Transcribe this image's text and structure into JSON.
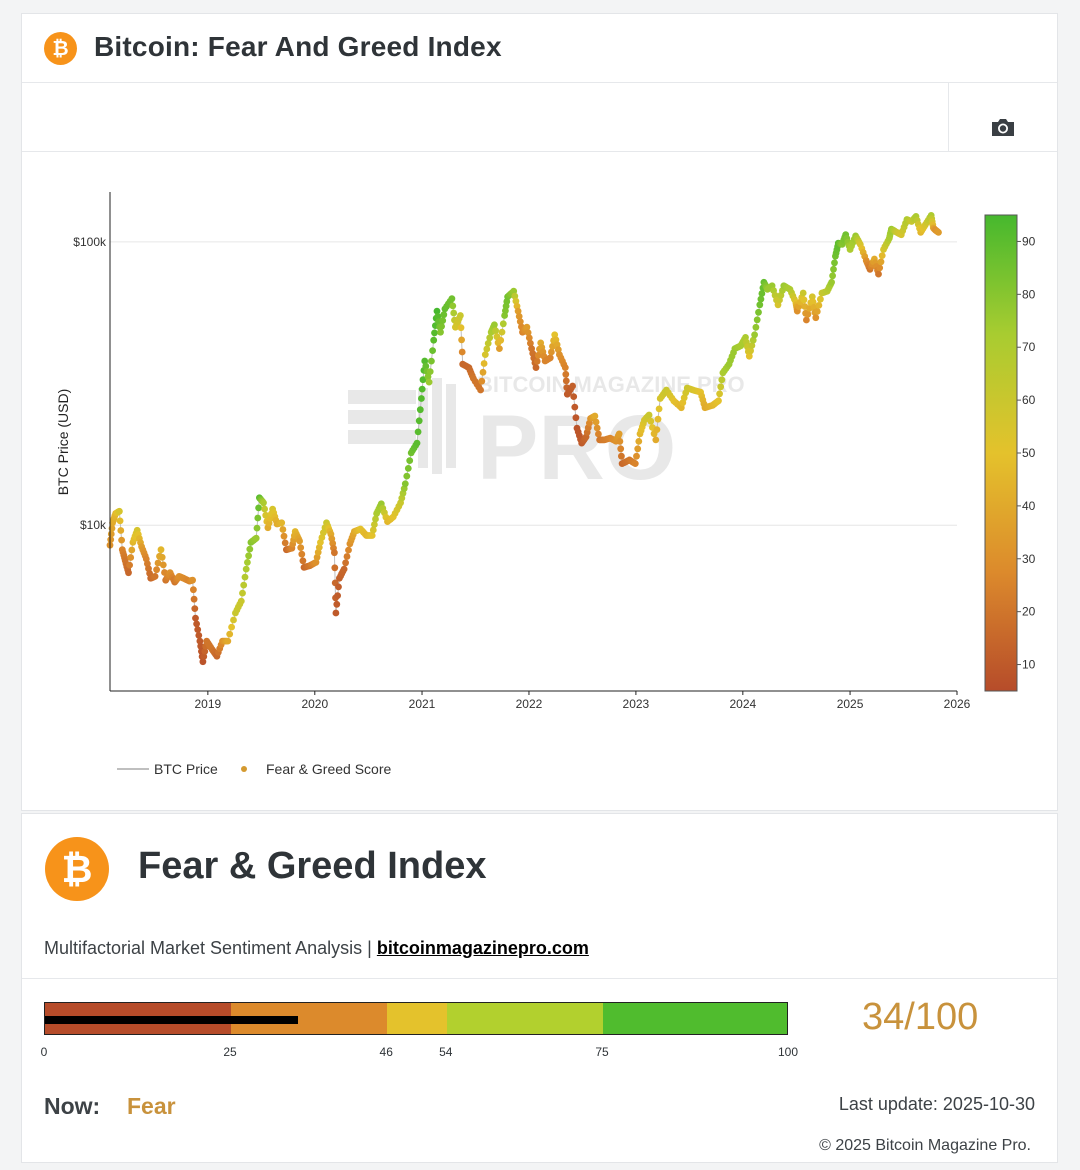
{
  "header": {
    "title": "Bitcoin: Fear And Greed Index",
    "logo_glyph": "₿"
  },
  "toolbar": {
    "camera_icon": "camera-icon"
  },
  "chart_data": {
    "type": "scatter",
    "ylabel": "BTC Price (USD)",
    "xlabel": "",
    "y_scale": "log",
    "ylim": [
      2600,
      150000
    ],
    "y_ticks": [
      {
        "value": 10000,
        "label": "$10k"
      },
      {
        "value": 100000,
        "label": "$100k"
      }
    ],
    "xlim": [
      "2018-02-01",
      "2026-01-01"
    ],
    "x_ticks": [
      "2019",
      "2020",
      "2021",
      "2022",
      "2023",
      "2024",
      "2025",
      "2026"
    ],
    "colorbar": {
      "min": 5,
      "max": 95,
      "ticks": [
        10,
        20,
        30,
        40,
        50,
        60,
        70,
        80,
        90
      ]
    },
    "legend": {
      "position": "bottom-left",
      "items": [
        "BTC Price",
        "Fear & Greed Score"
      ]
    },
    "watermark": "BITCOIN MAGAZINE PRO",
    "series": [
      {
        "name": "BTC Price",
        "style": "line",
        "color": "#bfbfbf"
      },
      {
        "name": "Fear & Greed Score",
        "style": "points",
        "points": [
          [
            "2018-02-01",
            8500,
            30
          ],
          [
            "2018-02-10",
            10200,
            40
          ],
          [
            "2018-02-20",
            11000,
            45
          ],
          [
            "2018-03-05",
            11200,
            55
          ],
          [
            "2018-03-15",
            8200,
            25
          ],
          [
            "2018-03-25",
            7500,
            20
          ],
          [
            "2018-04-05",
            6800,
            15
          ],
          [
            "2018-04-20",
            8700,
            45
          ],
          [
            "2018-05-05",
            9600,
            55
          ],
          [
            "2018-05-20",
            8400,
            35
          ],
          [
            "2018-06-05",
            7600,
            25
          ],
          [
            "2018-06-20",
            6500,
            15
          ],
          [
            "2018-07-05",
            6600,
            20
          ],
          [
            "2018-07-25",
            8200,
            45
          ],
          [
            "2018-08-10",
            6400,
            20
          ],
          [
            "2018-08-25",
            6800,
            30
          ],
          [
            "2018-09-10",
            6300,
            20
          ],
          [
            "2018-09-25",
            6600,
            30
          ],
          [
            "2018-10-10",
            6500,
            28
          ],
          [
            "2018-10-30",
            6350,
            25
          ],
          [
            "2018-11-10",
            6400,
            30
          ],
          [
            "2018-11-20",
            4700,
            10
          ],
          [
            "2018-12-05",
            3900,
            10
          ],
          [
            "2018-12-15",
            3300,
            8
          ],
          [
            "2018-12-28",
            3900,
            20
          ],
          [
            "2019-01-15",
            3650,
            20
          ],
          [
            "2019-02-01",
            3450,
            15
          ],
          [
            "2019-02-20",
            3900,
            30
          ],
          [
            "2019-03-10",
            3900,
            40
          ],
          [
            "2019-04-05",
            4900,
            60
          ],
          [
            "2019-04-25",
            5400,
            60
          ],
          [
            "2019-05-12",
            7000,
            70
          ],
          [
            "2019-05-28",
            8700,
            80
          ],
          [
            "2019-06-15",
            9000,
            75
          ],
          [
            "2019-06-26",
            12500,
            90
          ],
          [
            "2019-07-10",
            12000,
            70
          ],
          [
            "2019-07-25",
            9800,
            40
          ],
          [
            "2019-08-10",
            11400,
            55
          ],
          [
            "2019-08-25",
            10100,
            40
          ],
          [
            "2019-09-10",
            10200,
            45
          ],
          [
            "2019-09-26",
            8200,
            15
          ],
          [
            "2019-10-15",
            8300,
            25
          ],
          [
            "2019-10-26",
            9500,
            45
          ],
          [
            "2019-11-10",
            8800,
            35
          ],
          [
            "2019-11-25",
            7100,
            15
          ],
          [
            "2019-12-15",
            7200,
            20
          ],
          [
            "2020-01-05",
            7400,
            30
          ],
          [
            "2020-01-20",
            8700,
            50
          ],
          [
            "2020-02-10",
            10200,
            60
          ],
          [
            "2020-02-25",
            9300,
            40
          ],
          [
            "2020-03-08",
            8000,
            20
          ],
          [
            "2020-03-13",
            4900,
            10
          ],
          [
            "2020-03-25",
            6500,
            12
          ],
          [
            "2020-04-10",
            7000,
            15
          ],
          [
            "2020-04-30",
            8600,
            30
          ],
          [
            "2020-05-15",
            9500,
            40
          ],
          [
            "2020-06-05",
            9700,
            50
          ],
          [
            "2020-06-25",
            9200,
            45
          ],
          [
            "2020-07-15",
            9200,
            50
          ],
          [
            "2020-07-30",
            11000,
            70
          ],
          [
            "2020-08-15",
            11900,
            75
          ],
          [
            "2020-09-05",
            10300,
            45
          ],
          [
            "2020-09-25",
            10700,
            50
          ],
          [
            "2020-10-20",
            12000,
            60
          ],
          [
            "2020-11-05",
            14000,
            80
          ],
          [
            "2020-11-25",
            18000,
            85
          ],
          [
            "2020-12-15",
            19500,
            90
          ],
          [
            "2020-12-30",
            28000,
            92
          ],
          [
            "2021-01-10",
            38000,
            92
          ],
          [
            "2021-01-25",
            32000,
            75
          ],
          [
            "2021-02-10",
            45000,
            90
          ],
          [
            "2021-02-21",
            57000,
            95
          ],
          [
            "2021-03-05",
            48000,
            80
          ],
          [
            "2021-03-20",
            58000,
            88
          ],
          [
            "2021-04-13",
            63000,
            85
          ],
          [
            "2021-04-25",
            50000,
            55
          ],
          [
            "2021-05-12",
            55000,
            60
          ],
          [
            "2021-05-20",
            37000,
            15
          ],
          [
            "2021-06-10",
            36000,
            15
          ],
          [
            "2021-06-25",
            33000,
            20
          ],
          [
            "2021-07-20",
            30000,
            20
          ],
          [
            "2021-08-05",
            40000,
            55
          ],
          [
            "2021-08-25",
            48000,
            70
          ],
          [
            "2021-09-05",
            51000,
            75
          ],
          [
            "2021-09-22",
            42000,
            35
          ],
          [
            "2021-10-10",
            55000,
            80
          ],
          [
            "2021-10-20",
            64000,
            85
          ],
          [
            "2021-11-10",
            67000,
            75
          ],
          [
            "2021-11-25",
            57000,
            35
          ],
          [
            "2021-12-10",
            48000,
            25
          ],
          [
            "2021-12-25",
            50000,
            35
          ],
          [
            "2022-01-10",
            42000,
            20
          ],
          [
            "2022-01-25",
            36000,
            15
          ],
          [
            "2022-02-10",
            44000,
            40
          ],
          [
            "2022-02-25",
            38000,
            25
          ],
          [
            "2022-03-15",
            39000,
            25
          ],
          [
            "2022-03-30",
            47000,
            50
          ],
          [
            "2022-04-15",
            40000,
            30
          ],
          [
            "2022-05-05",
            36000,
            25
          ],
          [
            "2022-05-12",
            29000,
            10
          ],
          [
            "2022-05-30",
            31000,
            12
          ],
          [
            "2022-06-14",
            22000,
            8
          ],
          [
            "2022-06-30",
            19500,
            10
          ],
          [
            "2022-07-15",
            20500,
            15
          ],
          [
            "2022-07-30",
            23800,
            30
          ],
          [
            "2022-08-14",
            24300,
            40
          ],
          [
            "2022-08-30",
            20000,
            20
          ],
          [
            "2022-09-15",
            20000,
            22
          ],
          [
            "2022-10-05",
            20300,
            25
          ],
          [
            "2022-10-25",
            19800,
            30
          ],
          [
            "2022-11-05",
            21000,
            35
          ],
          [
            "2022-11-15",
            16500,
            15
          ],
          [
            "2022-12-10",
            17000,
            20
          ],
          [
            "2022-12-30",
            16500,
            25
          ],
          [
            "2023-01-15",
            21000,
            45
          ],
          [
            "2023-01-30",
            23500,
            55
          ],
          [
            "2023-02-15",
            24500,
            60
          ],
          [
            "2023-03-10",
            20000,
            40
          ],
          [
            "2023-03-25",
            28000,
            55
          ],
          [
            "2023-04-15",
            30000,
            60
          ],
          [
            "2023-05-10",
            27500,
            50
          ],
          [
            "2023-06-05",
            26000,
            45
          ],
          [
            "2023-06-25",
            30500,
            60
          ],
          [
            "2023-07-15",
            30000,
            55
          ],
          [
            "2023-08-10",
            29500,
            50
          ],
          [
            "2023-08-25",
            26000,
            40
          ],
          [
            "2023-09-20",
            26500,
            45
          ],
          [
            "2023-10-10",
            27500,
            50
          ],
          [
            "2023-10-25",
            34500,
            70
          ],
          [
            "2023-11-15",
            37000,
            75
          ],
          [
            "2023-12-05",
            42000,
            75
          ],
          [
            "2023-12-25",
            43000,
            72
          ],
          [
            "2024-01-10",
            46000,
            70
          ],
          [
            "2024-01-23",
            39500,
            50
          ],
          [
            "2024-02-10",
            47000,
            75
          ],
          [
            "2024-02-28",
            60000,
            85
          ],
          [
            "2024-03-13",
            72000,
            88
          ],
          [
            "2024-03-25",
            68000,
            75
          ],
          [
            "2024-04-10",
            70000,
            75
          ],
          [
            "2024-04-30",
            60000,
            55
          ],
          [
            "2024-05-20",
            70000,
            75
          ],
          [
            "2024-06-10",
            68000,
            70
          ],
          [
            "2024-06-30",
            61000,
            50
          ],
          [
            "2024-07-05",
            57000,
            30
          ],
          [
            "2024-07-25",
            66000,
            60
          ],
          [
            "2024-08-05",
            53000,
            25
          ],
          [
            "2024-08-25",
            64000,
            55
          ],
          [
            "2024-09-06",
            54000,
            30
          ],
          [
            "2024-09-27",
            66000,
            60
          ],
          [
            "2024-10-15",
            67000,
            65
          ],
          [
            "2024-10-30",
            72000,
            75
          ],
          [
            "2024-11-12",
            89000,
            85
          ],
          [
            "2024-11-22",
            99000,
            90
          ],
          [
            "2024-12-05",
            98000,
            80
          ],
          [
            "2024-12-17",
            106000,
            85
          ],
          [
            "2025-01-01",
            94000,
            70
          ],
          [
            "2025-01-20",
            105000,
            75
          ],
          [
            "2025-02-05",
            98000,
            55
          ],
          [
            "2025-02-25",
            86000,
            30
          ],
          [
            "2025-03-10",
            80000,
            20
          ],
          [
            "2025-03-25",
            87000,
            40
          ],
          [
            "2025-04-08",
            77000,
            20
          ],
          [
            "2025-04-25",
            94000,
            55
          ],
          [
            "2025-05-15",
            103000,
            70
          ],
          [
            "2025-05-22",
            111000,
            75
          ],
          [
            "2025-06-10",
            108000,
            60
          ],
          [
            "2025-06-25",
            106000,
            55
          ],
          [
            "2025-07-14",
            120000,
            70
          ],
          [
            "2025-07-30",
            118000,
            60
          ],
          [
            "2025-08-14",
            123000,
            70
          ],
          [
            "2025-08-30",
            108000,
            45
          ],
          [
            "2025-09-15",
            115000,
            55
          ],
          [
            "2025-10-05",
            124000,
            70
          ],
          [
            "2025-10-12",
            112000,
            40
          ],
          [
            "2025-10-20",
            110000,
            30
          ],
          [
            "2025-10-30",
            108000,
            34
          ]
        ]
      }
    ]
  },
  "panel": {
    "title": "Fear & Greed Index",
    "logo_glyph": "₿",
    "subtitle": "Multifactorial Market Sentiment Analysis",
    "separator": "|",
    "link": "bitcoinmagazinepro.com",
    "gauge": {
      "segments": [
        {
          "from": 0,
          "to": 25,
          "color": "#b64c2a"
        },
        {
          "from": 25,
          "to": 46,
          "color": "#dc8a2c"
        },
        {
          "from": 46,
          "to": 54,
          "color": "#e4c22c"
        },
        {
          "from": 54,
          "to": 75,
          "color": "#b2d02e"
        },
        {
          "from": 75,
          "to": 100,
          "color": "#50bc2e"
        }
      ],
      "ticks": [
        "0",
        "25",
        "46",
        "54",
        "75",
        "100"
      ],
      "value": 34
    },
    "score_text": "34/100",
    "now_label": "Now:",
    "now_value": "Fear",
    "last_update": "Last update: 2025-10-30",
    "copyright": "© 2025 Bitcoin Magazine Pro."
  }
}
